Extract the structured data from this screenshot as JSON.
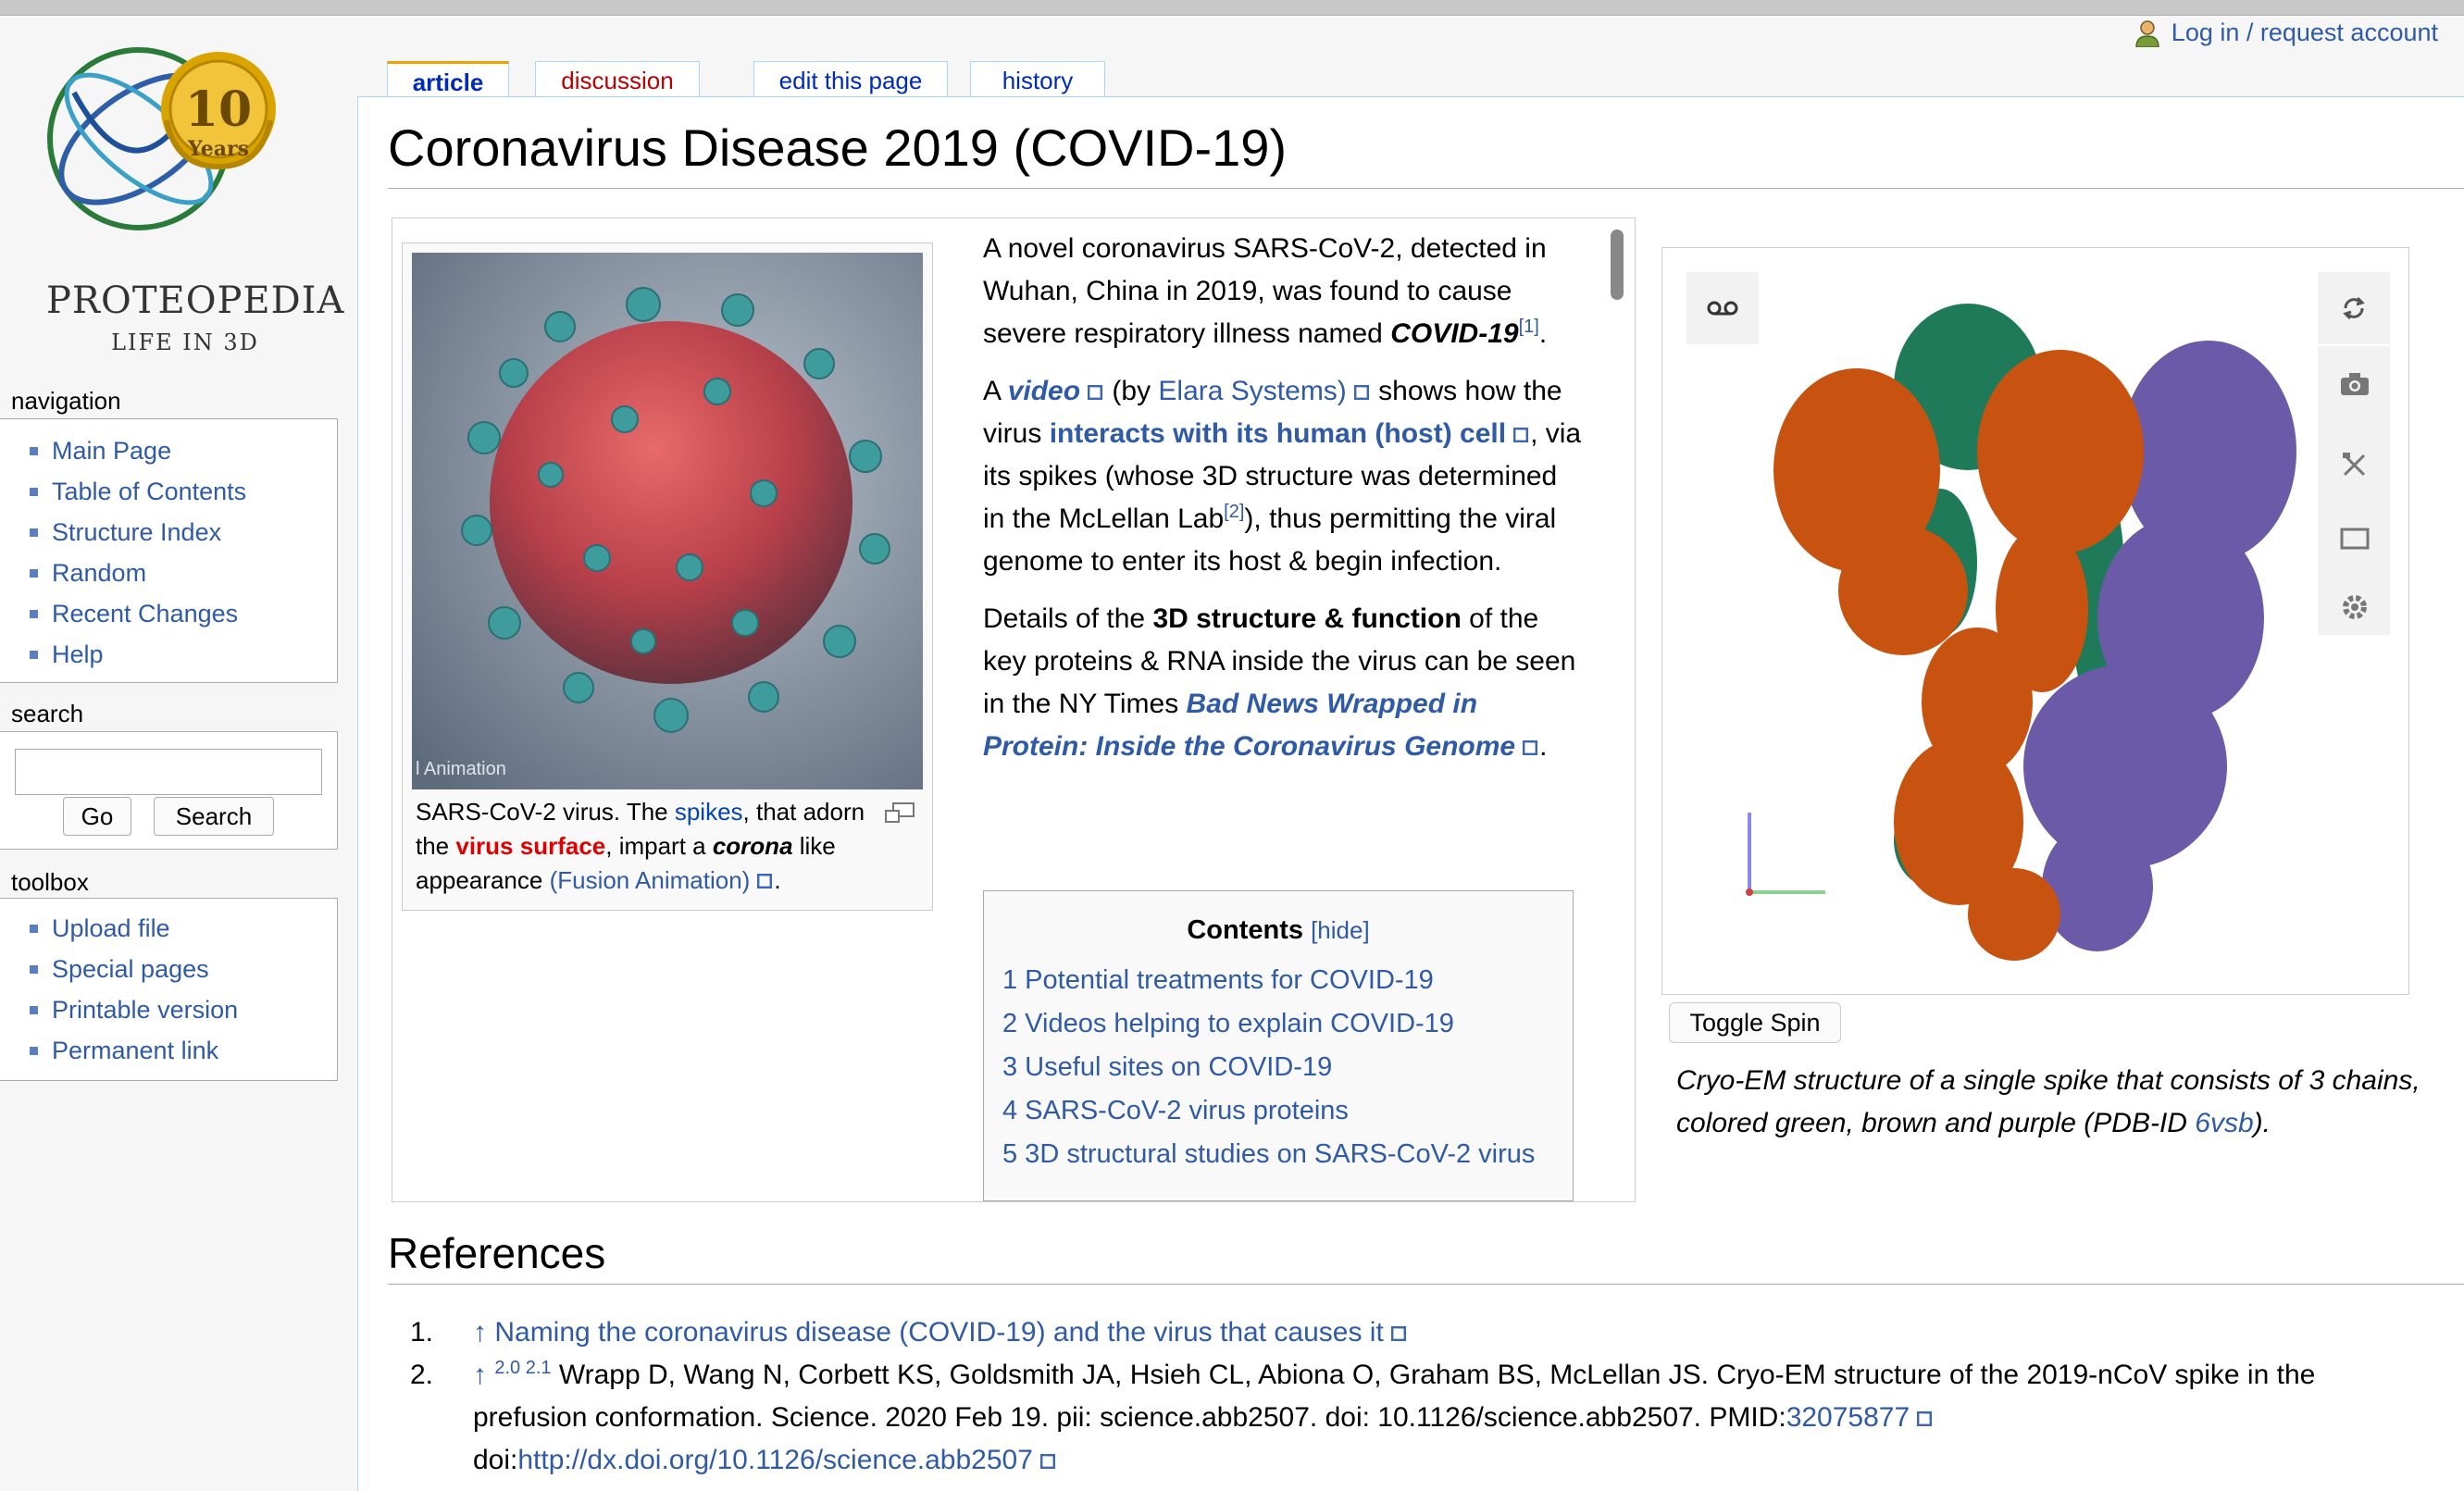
{
  "header": {
    "login_label": "Log in / request account"
  },
  "logo": {
    "badge_number": "10",
    "badge_text": "Years",
    "name": "PROTEOPEDIA",
    "tagline": "LIFE IN 3D"
  },
  "tabs": [
    {
      "label": "article"
    },
    {
      "label": "discussion"
    },
    {
      "label": "edit this page"
    },
    {
      "label": "history"
    }
  ],
  "sidebar": {
    "navigation": {
      "title": "navigation",
      "items": [
        "Main Page",
        "Table of Contents",
        "Structure Index",
        "Random",
        "Recent Changes",
        "Help"
      ]
    },
    "search": {
      "title": "search",
      "value": "",
      "go_label": "Go",
      "search_label": "Search"
    },
    "toolbox": {
      "title": "toolbox",
      "items": [
        "Upload file",
        "Special pages",
        "Printable version",
        "Permanent link"
      ]
    }
  },
  "page": {
    "title": "Coronavirus Disease 2019 (COVID-19)"
  },
  "figure": {
    "watermark": "l Animation",
    "caption": {
      "t1": "SARS-CoV-2 virus. The ",
      "spikes": "spikes",
      "t2": ", that adorn the ",
      "virus_surface": "virus surface",
      "t3": ", impart a ",
      "corona": "corona",
      "t4": " like appearance ",
      "fusion": "(Fusion Animation)",
      "t5": "."
    }
  },
  "intro": {
    "p1": {
      "text": "A novel coronavirus SARS-CoV-2, detected in Wuhan, China in 2019, was found to cause severe respiratory illness named ",
      "bold": "COVID-19",
      "ref": "[1]",
      "end": "."
    },
    "p2": {
      "a": "A ",
      "video": "video",
      "b": " (by ",
      "elara": "Elara Systems)",
      "c": " shows how the virus ",
      "interacts": "interacts with its human (host) cell",
      "d": ", via its spikes (whose 3D structure was determined in the McLellan Lab",
      "ref": "[2]",
      "e": "), thus permitting the viral genome to enter its host & begin infection."
    },
    "p3": {
      "a": "Details of the ",
      "bold": "3D structure & function",
      "b": " of the key proteins & RNA inside the virus can be seen in the NY Times ",
      "link": "Bad News Wrapped in Protein: Inside the Coronavirus Genome",
      "c": "."
    }
  },
  "toc": {
    "title": "Contents",
    "hide": "[hide]",
    "items": [
      "1 Potential treatments for COVID-19",
      "2 Videos helping to explain COVID-19",
      "3 Useful sites on COVID-19",
      "4 SARS-CoV-2 virus proteins",
      "5 3D structural studies on SARS-CoV-2 virus"
    ]
  },
  "viewer": {
    "toggle_spin_label": "Toggle Spin",
    "caption": {
      "text": "Cryo-EM structure of a single spike that consists of 3 chains, colored green, brown and purple (PDB-ID ",
      "pdb": "6vsb",
      "end": ")."
    },
    "colors": {
      "green": "#1f7a5a",
      "brown": "#c8520f",
      "purple": "#6a5aa8"
    }
  },
  "references": {
    "heading": "References",
    "items": [
      {
        "num": "1.",
        "arrow": "↑",
        "link": "Naming the coronavirus disease (COVID-19) and the virus that causes it"
      },
      {
        "num": "2.",
        "arrow": "↑",
        "sup": "2.0 2.1",
        "text": " Wrapp D, Wang N, Corbett KS, Goldsmith JA, Hsieh CL, Abiona O, Graham BS, McLellan JS. Cryo-EM structure of the 2019-nCoV spike in the prefusion conformation. Science. 2020 Feb 19. pii: science.abb2507. doi: 10.1126/science.abb2507. PMID:",
        "pmid": "32075877",
        "doi_label": "doi:",
        "doi_link": "http://dx.doi.org/10.1126/science.abb2507"
      }
    ]
  }
}
